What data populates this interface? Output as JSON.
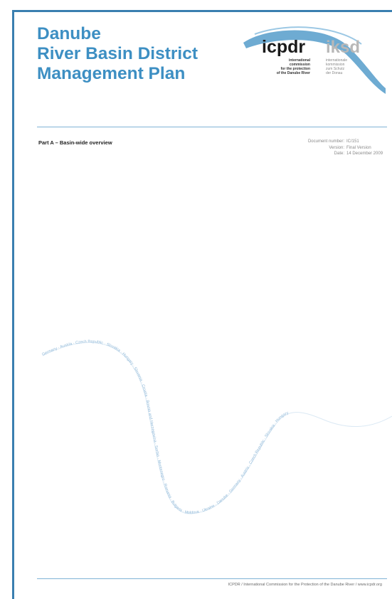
{
  "title": {
    "line1": "Danube",
    "line2": "River Basin District",
    "line3": "Management Plan"
  },
  "logo": {
    "left_name": "icpdr",
    "right_name": "iksd",
    "left_text": [
      "international",
      "commission",
      "for the protection",
      "of the Danube River"
    ],
    "right_text": [
      "internationale",
      "kommission",
      "zum Schutz",
      "der Donau"
    ],
    "accent_color": "#3d8fc3"
  },
  "part_label": "Part A – Basin-wide overview",
  "document_info": {
    "number_label": "Document number:",
    "number_value": "IC/151",
    "version_label": "Version:",
    "version_value": "Final Version",
    "date_label": "Date:",
    "date_value": "14 December 2009"
  },
  "wave_text": "Germany · Austria · Czech Republic · Slovakia · Hungary · Slovenia · Croatia · Bosnia and Herzegovina · Serbia · Montenegro · Romania · Bulgaria · Moldova · Ukraine · Danube · Germany · Austria · Czech Republic · Slovakia · Hungary",
  "footer": "ICPDR / International Commission for the Protection of the Danube River / www.icpdr.org"
}
